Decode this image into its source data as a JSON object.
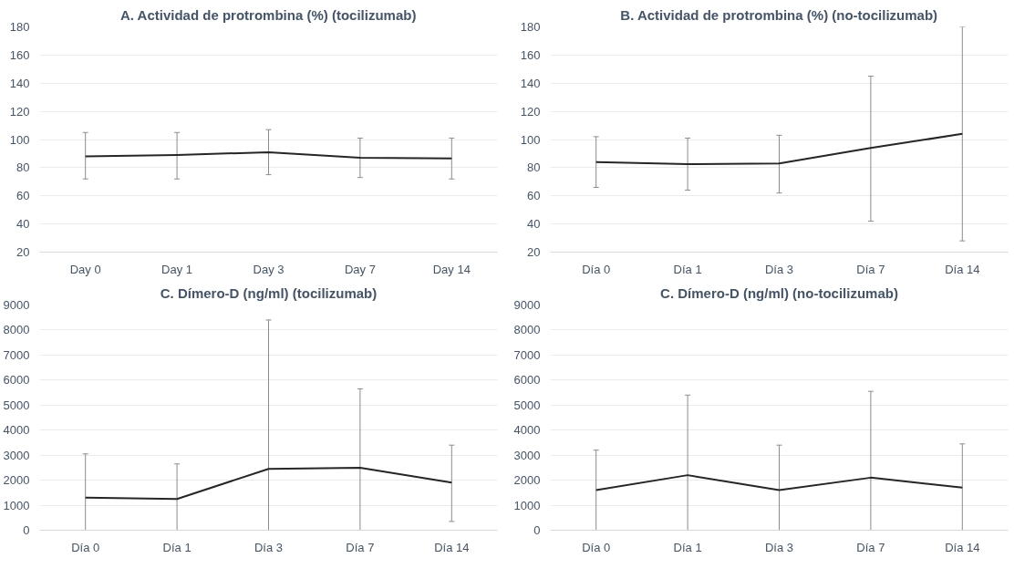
{
  "chart_data": [
    {
      "type": "line",
      "title": "A. Actividad de protrombina (%) (tocilizumab)",
      "categories": [
        "Day 0",
        "Day 1",
        "Day 3",
        "Day 7",
        "Day 14"
      ],
      "series": [
        {
          "color": "#262626",
          "values": [
            88,
            89,
            91,
            87,
            86.5
          ],
          "errors": [
            [
              72,
              105
            ],
            [
              72,
              105
            ],
            [
              75,
              107
            ],
            [
              73,
              101
            ],
            [
              72,
              101
            ]
          ]
        }
      ],
      "ylim": [
        20,
        180
      ],
      "yticks": [
        20,
        40,
        60,
        80,
        100,
        120,
        140,
        160,
        180
      ],
      "grid": "y",
      "marker": "none",
      "line_style": "solid"
    },
    {
      "type": "line",
      "title": "B. Actividad de protrombina (%) (no-tocilizumab)",
      "categories": [
        "Día 0",
        "Día 1",
        "Día 3",
        "Día 7",
        "Día 14"
      ],
      "series": [
        {
          "color": "#262626",
          "values": [
            84,
            82.5,
            83,
            94,
            104
          ],
          "errors": [
            [
              66,
              102
            ],
            [
              64,
              101
            ],
            [
              62,
              103
            ],
            [
              42,
              145
            ],
            [
              28,
              180
            ]
          ]
        }
      ],
      "ylim": [
        20,
        180
      ],
      "yticks": [
        20,
        40,
        60,
        80,
        100,
        120,
        140,
        160,
        180
      ],
      "grid": "y",
      "marker": "none",
      "line_style": "solid"
    },
    {
      "type": "line",
      "title": "C. Dímero-D (ng/ml) (tocilizumab)",
      "categories": [
        "Día 0",
        "Día 1",
        "Día 3",
        "Día 7",
        "Día 14"
      ],
      "series": [
        {
          "color": "#262626",
          "values": [
            1300,
            1250,
            2450,
            2500,
            1900
          ],
          "errors": [
            [
              0,
              3050
            ],
            [
              0,
              2650
            ],
            [
              0,
              8400
            ],
            [
              0,
              5650
            ],
            [
              350,
              3400
            ]
          ]
        }
      ],
      "ylim": [
        0,
        9000
      ],
      "yticks": [
        0,
        1000,
        2000,
        3000,
        4000,
        5000,
        6000,
        7000,
        8000,
        9000
      ],
      "grid": "y",
      "marker": "none",
      "line_style": "solid"
    },
    {
      "type": "line",
      "title": "C. Dímero-D (ng/ml) (no-tocilizumab)",
      "categories": [
        "Día 0",
        "Día 1",
        "Día 3",
        "Día 7",
        "Día 14"
      ],
      "series": [
        {
          "color": "#262626",
          "values": [
            1600,
            2200,
            1600,
            2100,
            1700
          ],
          "errors": [
            [
              0,
              3200
            ],
            [
              0,
              5400
            ],
            [
              0,
              3400
            ],
            [
              0,
              5550
            ],
            [
              0,
              3450
            ]
          ]
        }
      ],
      "ylim": [
        0,
        9000
      ],
      "yticks": [
        0,
        1000,
        2000,
        3000,
        4000,
        5000,
        6000,
        7000,
        8000,
        9000
      ],
      "grid": "y",
      "marker": "none",
      "line_style": "solid"
    }
  ]
}
